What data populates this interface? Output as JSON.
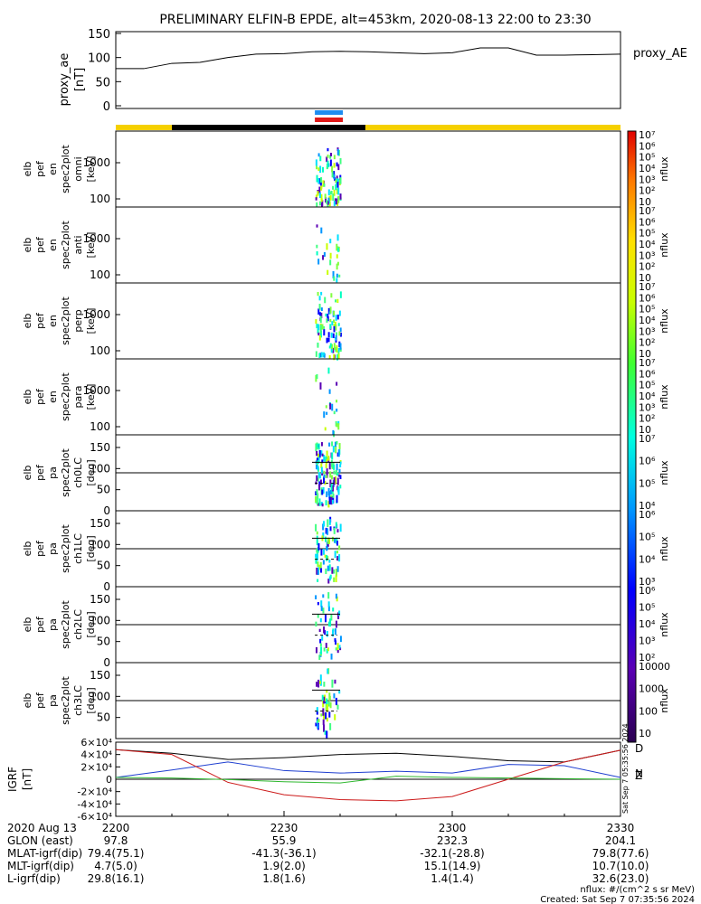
{
  "title": "PRELIMINARY ELFIN-B EPDE, alt=453km, 2020-08-13 22:00 to 23:30",
  "colors": {
    "blue_bar": "#1e8cf0",
    "red_bar": "#e01818",
    "day_bar": "#f5d000",
    "night_bar": "#000000"
  },
  "chart_data": [
    {
      "type": "line",
      "name": "proxy_ae",
      "ylabel_lines": [
        "proxy_ae",
        "[nT]"
      ],
      "legend": "proxy_AE",
      "ylim": [
        0,
        150
      ],
      "yticks": [
        "0",
        "50",
        "100",
        "150"
      ],
      "x": [
        0,
        5,
        10,
        15,
        20,
        25,
        30,
        35,
        40,
        45,
        50,
        55,
        60,
        65,
        70,
        75,
        80,
        85,
        90
      ],
      "values": [
        77,
        77,
        88,
        90,
        100,
        107,
        108,
        112,
        113,
        112,
        110,
        108,
        110,
        120,
        120,
        105,
        105,
        106,
        107
      ]
    },
    {
      "type": "heatmap",
      "name": "omni",
      "ylabel_lines": [
        "elb",
        "pef",
        "en",
        "spec2plot",
        "omni",
        "[keV]"
      ],
      "yscale": "log",
      "yticks": [
        "100",
        "1000"
      ],
      "cbar_ticks": [
        "10",
        "10²",
        "10³",
        "10⁴",
        "10⁵",
        "10⁶",
        "10⁷"
      ],
      "cbar_label": "nflux"
    },
    {
      "type": "heatmap",
      "name": "anti",
      "ylabel_lines": [
        "elb",
        "pef",
        "en",
        "spec2plot",
        "anti",
        "[keV]"
      ],
      "yscale": "log",
      "yticks": [
        "100",
        "1000"
      ],
      "cbar_ticks": [
        "10",
        "10²",
        "10³",
        "10⁴",
        "10⁵",
        "10⁶",
        "10⁷"
      ],
      "cbar_label": "nflux"
    },
    {
      "type": "heatmap",
      "name": "perp",
      "ylabel_lines": [
        "elb",
        "pef",
        "en",
        "spec2plot",
        "perp",
        "[keV]"
      ],
      "yscale": "log",
      "yticks": [
        "100",
        "1000"
      ],
      "cbar_ticks": [
        "10",
        "10²",
        "10³",
        "10⁴",
        "10⁵",
        "10⁶",
        "10⁷"
      ],
      "cbar_label": "nflux"
    },
    {
      "type": "heatmap",
      "name": "para",
      "ylabel_lines": [
        "elb",
        "pef",
        "en",
        "spec2plot",
        "para",
        "[keV]"
      ],
      "yscale": "log",
      "yticks": [
        "100",
        "1000"
      ],
      "cbar_ticks": [
        "10",
        "10²",
        "10³",
        "10⁴",
        "10⁵",
        "10⁶",
        "10⁷"
      ],
      "cbar_label": "nflux"
    },
    {
      "type": "heatmap",
      "name": "ch0LC",
      "ylabel_lines": [
        "elb",
        "pef",
        "pa",
        "spec2plot",
        "ch0LC",
        "[deg]"
      ],
      "ylim": [
        0,
        180
      ],
      "yticks": [
        "0",
        "50",
        "100",
        "150"
      ],
      "cbar_ticks": [
        "10⁴",
        "10⁵",
        "10⁶",
        "10⁷"
      ],
      "cbar_label": "nflux"
    },
    {
      "type": "heatmap",
      "name": "ch1LC",
      "ylabel_lines": [
        "elb",
        "pef",
        "pa",
        "spec2plot",
        "ch1LC",
        "[deg]"
      ],
      "ylim": [
        0,
        180
      ],
      "yticks": [
        "0",
        "50",
        "100",
        "150"
      ],
      "cbar_ticks": [
        "10³",
        "10⁴",
        "10⁵",
        "10⁶"
      ],
      "cbar_label": "nflux"
    },
    {
      "type": "heatmap",
      "name": "ch2LC",
      "ylabel_lines": [
        "elb",
        "pef",
        "pa",
        "spec2plot",
        "ch2LC",
        "[deg]"
      ],
      "ylim": [
        0,
        180
      ],
      "yticks": [
        "0",
        "50",
        "100",
        "150"
      ],
      "cbar_ticks": [
        "10²",
        "10³",
        "10⁴",
        "10⁵",
        "10⁶"
      ],
      "cbar_label": "nflux"
    },
    {
      "type": "heatmap",
      "name": "ch3LC",
      "ylabel_lines": [
        "elb",
        "pef",
        "pa",
        "spec2plot",
        "ch3LC",
        "[deg]"
      ],
      "ylim": [
        0,
        180
      ],
      "yticks": [
        "50",
        "100",
        "150"
      ],
      "cbar_ticks": [
        "10",
        "100",
        "1000",
        "10000"
      ],
      "cbar_label": "nflux"
    },
    {
      "type": "line",
      "name": "IGRF",
      "ylabel_lines": [
        "IGRF",
        "[nT]"
      ],
      "ylim": [
        -60000,
        60000
      ],
      "yticks": [
        "-6×10⁴",
        "-4×10⁴",
        "-2×10⁴",
        "0",
        "2×10⁴",
        "4×10⁴",
        "6×10⁴"
      ],
      "legend": [
        "D",
        "N",
        "Z"
      ],
      "side_label": "Sat Sep  7 05:35:56 2024",
      "x": [
        0,
        10,
        20,
        30,
        40,
        50,
        60,
        70,
        80,
        90
      ],
      "series": [
        {
          "name": "D",
          "color": "#000000",
          "values": [
            48000,
            42000,
            32000,
            35000,
            40000,
            42000,
            37000,
            30000,
            28000,
            47000
          ]
        },
        {
          "name": "N",
          "color": "#1f3fd0",
          "values": [
            3000,
            15000,
            28000,
            14000,
            10000,
            13000,
            10000,
            24000,
            22000,
            3000
          ]
        },
        {
          "name": "Z",
          "color": "#cc1a1a",
          "values": [
            48000,
            40000,
            -5000,
            -25000,
            -33000,
            -35000,
            -28000,
            0,
            28000,
            47000
          ]
        },
        {
          "name": "green",
          "color": "#2fb82f",
          "values": [
            3000,
            2000,
            -500,
            -4000,
            -6000,
            5000,
            3000,
            2000,
            1000,
            0
          ]
        }
      ]
    }
  ],
  "x_axis": {
    "rows": [
      {
        "label": "2020 Aug 13",
        "values": [
          "2200",
          "2230",
          "2300",
          "2330"
        ]
      },
      {
        "label": "GLON (east)",
        "values": [
          "97.8",
          "55.9",
          "232.3",
          "204.1"
        ]
      },
      {
        "label": "MLAT-igrf(dip)",
        "values": [
          "79.4(75.1)",
          "-41.3(-36.1)",
          "-32.1(-28.8)",
          "79.8(77.6)"
        ]
      },
      {
        "label": "MLT-igrf(dip)",
        "values": [
          "4.7(5.0)",
          "1.9(2.0)",
          "15.1(14.9)",
          "10.7(10.0)"
        ]
      },
      {
        "label": "L-igrf(dip)",
        "values": [
          "29.8(16.1)",
          "1.8(1.6)",
          "1.4(1.4)",
          "32.6(23.0)"
        ]
      }
    ]
  },
  "footer": {
    "units": "nflux: #/(cm^2 s sr MeV)",
    "created": "Created: Sat Sep  7 07:35:56 2024"
  }
}
